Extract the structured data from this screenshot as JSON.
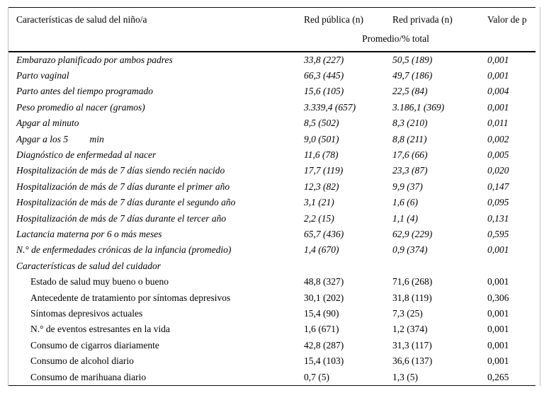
{
  "colors": {
    "text": "#000000",
    "rule": "#0a0a0a",
    "frame_border": "#c0c0c0",
    "background": "#ffffff"
  },
  "table": {
    "columns": [
      "Características de salud del niño/a",
      "Red pública (n)",
      "Red privada (n)",
      "Valor de p"
    ],
    "subheader": "Promedio/% total",
    "rows": [
      {
        "label": "Embarazo planificado por ambos padres",
        "publica": "33,8 (227)",
        "privada": "50,5 (189)",
        "p": "0,001",
        "italic": true,
        "indent": false
      },
      {
        "label": "Parto vaginal",
        "publica": "66,3 (445)",
        "privada": "49,7 (186)",
        "p": "0,001",
        "italic": true,
        "indent": false
      },
      {
        "label": "Parto antes del tiempo programado",
        "publica": "15,6 (105)",
        "privada": "22,5 (84)",
        "p": "0,004",
        "italic": true,
        "indent": false
      },
      {
        "label": "Peso promedio al nacer (gramos)",
        "publica": "3.339,4 (657)",
        "privada": "3.186,1 (369)",
        "p": "0,001",
        "italic": true,
        "indent": false
      },
      {
        "label": "Apgar al minuto",
        "publica": "8,5 (502)",
        "privada": "8,3 (210)",
        "p": "0,011",
        "italic": true,
        "indent": false
      },
      {
        "label": "Apgar a los 5         min",
        "publica": "9,0 (501)",
        "privada": "8,8 (211)",
        "p": "0,002",
        "italic": true,
        "indent": false
      },
      {
        "label": "Diagnóstico de enfermedad al nacer",
        "publica": "11,6 (78)",
        "privada": "17,6 (66)",
        "p": "0,005",
        "italic": true,
        "indent": false
      },
      {
        "label": "Hospitalización de más de 7 días siendo recién nacido",
        "publica": "17,7 (119)",
        "privada": "23,3 (87)",
        "p": "0,020",
        "italic": true,
        "indent": false
      },
      {
        "label": "Hospitalización de más de 7 días durante el primer año",
        "publica": "12,3 (82)",
        "privada": "9,9 (37)",
        "p": "0,147",
        "italic": true,
        "indent": false
      },
      {
        "label": "Hospitalización de más de 7 días durante el segundo año",
        "publica": "3,1 (21)",
        "privada": "1,6 (6)",
        "p": "0,095",
        "italic": true,
        "indent": false
      },
      {
        "label": "Hospitalización de más de 7 días durante el tercer año",
        "publica": "2,2 (15)",
        "privada": "1,1 (4)",
        "p": "0,131",
        "italic": true,
        "indent": false
      },
      {
        "label": "Lactancia materna por 6 o más meses",
        "publica": "65,7 (436)",
        "privada": "62,9 (229)",
        "p": "0,595",
        "italic": true,
        "indent": false
      },
      {
        "label": "N.° de enfermedades crónicas de la infancia (promedio)",
        "publica": "1,4 (670)",
        "privada": "0,9 (374)",
        "p": "0,001",
        "italic": true,
        "indent": false
      },
      {
        "label": "Características de salud del cuidador",
        "publica": "",
        "privada": "",
        "p": "",
        "italic": true,
        "indent": false
      },
      {
        "label": "Estado de salud muy bueno o bueno",
        "publica": "48,8 (327)",
        "privada": "71,6 (268)",
        "p": "0,001",
        "italic": false,
        "indent": true
      },
      {
        "label": "Antecedente de tratamiento por síntomas depresivos",
        "publica": "30,1 (202)",
        "privada": "31,8 (119)",
        "p": "0,306",
        "italic": false,
        "indent": true
      },
      {
        "label": "Síntomas depresivos actuales",
        "publica": "15,4 (90)",
        "privada": "7,3 (25)",
        "p": "0,001",
        "italic": false,
        "indent": true
      },
      {
        "label": "N.° de eventos estresantes en la vida",
        "publica": "1,6 (671)",
        "privada": "1,2 (374)",
        "p": "0,001",
        "italic": false,
        "indent": true
      },
      {
        "label": "Consumo de cigarros diariamente",
        "publica": "42,8 (287)",
        "privada": "31,3 (117)",
        "p": "0,001",
        "italic": false,
        "indent": true
      },
      {
        "label": "Consumo de alcohol diario",
        "publica": "15,4 (103)",
        "privada": "36,6 (137)",
        "p": "0,001",
        "italic": false,
        "indent": true
      },
      {
        "label": "Consumo de marihuana diario",
        "publica": "0,7 (5)",
        "privada": "1,3 (5)",
        "p": "0,265",
        "italic": false,
        "indent": true
      }
    ]
  }
}
